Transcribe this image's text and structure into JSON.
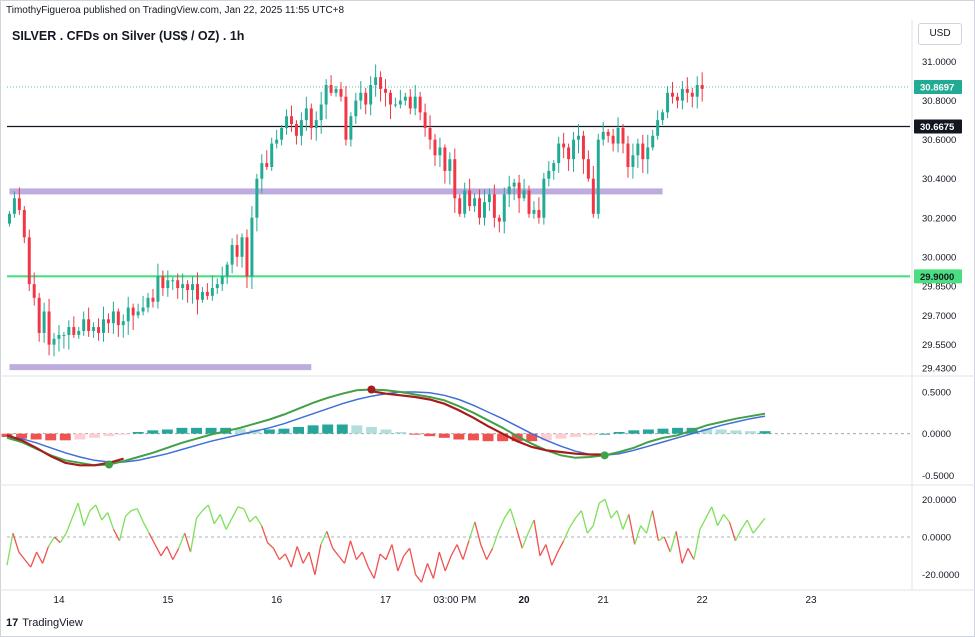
{
  "header": {
    "publish_line": "TimothyFigueroa published on TradingView.com, Jan 22, 2025 11:55 UTC+8",
    "symbol_line": "SILVER . CFDs on Silver (US$ / OZ) . 1h",
    "currency_button": "USD"
  },
  "footer": {
    "logo_glyph": "17",
    "brand": "TradingView"
  },
  "colors": {
    "up": "#22ab94",
    "down": "#f23645",
    "purple_zone": "#b39ddb",
    "green_line": "#4ade80",
    "black_line": "#131722",
    "macd_fast": "#43a047",
    "macd_slow": "#3f6fd8",
    "macd_dark": "#a51c1c",
    "hist_up_strong": "#26a69a",
    "hist_up_weak": "#b2dfdb",
    "hist_down_strong": "#ef5350",
    "hist_down_weak": "#ffcdd2",
    "osc_up": "#7ee05a",
    "osc_down": "#ef5350"
  },
  "chart_data": [
    {
      "type": "candlestick",
      "title": "SILVER . CFDs on Silver (US$ / OZ) . 1h",
      "price_axis_ticks": [
        "31.0000",
        "30.8000",
        "30.6000",
        "30.4000",
        "30.2000",
        "30.0000",
        "29.8500",
        "29.7000",
        "29.5500",
        "29.4300"
      ],
      "price_axis_values": [
        31.0,
        30.8,
        30.6,
        30.4,
        30.2,
        30.0,
        29.85,
        29.7,
        29.55,
        29.43
      ],
      "ylim": [
        29.41,
        31.09
      ],
      "x_ticks": [
        {
          "label": "14",
          "index": 10
        },
        {
          "label": "15",
          "index": 32
        },
        {
          "label": "16",
          "index": 54
        },
        {
          "label": "17",
          "index": 76
        },
        {
          "label": "03:00 PM",
          "index": 90
        },
        {
          "label": "20",
          "index": 104
        },
        {
          "label": "21",
          "index": 120
        },
        {
          "label": "22",
          "index": 140
        },
        {
          "label": "23",
          "index": 162
        }
      ],
      "x_range": [
        -0.5,
        182
      ],
      "last_price_label": "30.8697",
      "last_price": 30.8697,
      "horizontal_lines": [
        {
          "name": "resistance-line",
          "value": 30.6675,
          "label": "30.6675",
          "color": "#131722"
        },
        {
          "name": "support-line",
          "value": 29.9,
          "label": "29.9000",
          "color": "#4ade80"
        }
      ],
      "zones": [
        {
          "name": "upper-zone",
          "value": 30.335,
          "from_index": 0,
          "to_index": 132,
          "color": "#b39ddb"
        },
        {
          "name": "lower-zone",
          "value": 29.435,
          "from_index": 0,
          "to_index": 61,
          "color": "#b39ddb"
        }
      ],
      "closes": [
        30.22,
        30.3,
        30.24,
        30.1,
        29.86,
        29.79,
        29.61,
        29.72,
        29.55,
        29.58,
        29.6,
        29.6,
        29.64,
        29.6,
        29.62,
        29.68,
        29.62,
        29.64,
        29.61,
        29.68,
        29.66,
        29.72,
        29.65,
        29.67,
        29.74,
        29.7,
        29.72,
        29.74,
        29.79,
        29.77,
        29.9,
        29.84,
        29.88,
        29.88,
        29.84,
        29.86,
        29.83,
        29.86,
        29.78,
        29.82,
        29.8,
        29.84,
        29.86,
        29.9,
        29.96,
        30.06,
        30.0,
        30.1,
        29.9,
        30.2,
        30.4,
        30.48,
        30.46,
        30.58,
        30.6,
        30.66,
        30.72,
        30.68,
        30.62,
        30.7,
        30.76,
        30.66,
        30.7,
        30.78,
        30.88,
        30.84,
        30.86,
        30.82,
        30.6,
        30.72,
        30.8,
        30.84,
        30.78,
        30.88,
        30.92,
        30.86,
        30.84,
        30.78,
        30.78,
        30.8,
        30.82,
        30.76,
        30.82,
        30.74,
        30.66,
        30.6,
        30.52,
        30.56,
        30.44,
        30.5,
        30.3,
        30.22,
        30.34,
        30.26,
        30.3,
        30.2,
        30.28,
        30.32,
        30.2,
        30.18,
        30.32,
        30.36,
        30.38,
        30.3,
        30.34,
        30.22,
        30.24,
        30.2,
        30.4,
        30.44,
        30.48,
        30.58,
        30.56,
        30.5,
        30.6,
        30.62,
        30.5,
        30.4,
        30.22,
        30.6,
        30.64,
        30.62,
        30.58,
        30.66,
        30.58,
        30.46,
        30.52,
        30.58,
        30.5,
        30.56,
        30.62,
        30.7,
        30.74,
        30.84,
        30.82,
        30.8,
        30.86,
        30.84,
        30.82,
        30.88,
        30.86
      ]
    },
    {
      "type": "line",
      "name": "macd-panel",
      "axis_ticks": [
        "0.5000",
        "0.0000",
        "-0.5000"
      ],
      "axis_values": [
        0.5,
        0.0,
        -0.5
      ],
      "ylim": [
        -0.58,
        0.62
      ],
      "series": [
        {
          "key": "fast",
          "values": [
            -0.05,
            -0.1,
            -0.18,
            -0.26,
            -0.32,
            -0.35,
            -0.38,
            -0.37,
            -0.33,
            -0.28,
            -0.23,
            -0.17,
            -0.11,
            -0.06,
            -0.01,
            0.03,
            0.07,
            0.12,
            0.17,
            0.23,
            0.3,
            0.37,
            0.43,
            0.48,
            0.52,
            0.53,
            0.52,
            0.5,
            0.47,
            0.44,
            0.4,
            0.33,
            0.25,
            0.16,
            0.07,
            -0.03,
            -0.12,
            -0.2,
            -0.26,
            -0.29,
            -0.28,
            -0.26,
            -0.22,
            -0.17,
            -0.1,
            -0.05,
            -0.02,
            0.04,
            0.1,
            0.14,
            0.18,
            0.21,
            0.24
          ]
        },
        {
          "key": "slow",
          "values": [
            -0.03,
            -0.06,
            -0.11,
            -0.17,
            -0.23,
            -0.28,
            -0.32,
            -0.34,
            -0.34,
            -0.32,
            -0.28,
            -0.24,
            -0.19,
            -0.14,
            -0.09,
            -0.05,
            -0.01,
            0.03,
            0.07,
            0.12,
            0.18,
            0.24,
            0.3,
            0.36,
            0.41,
            0.45,
            0.48,
            0.5,
            0.5,
            0.49,
            0.46,
            0.41,
            0.34,
            0.26,
            0.18,
            0.09,
            0.0,
            -0.08,
            -0.15,
            -0.21,
            -0.25,
            -0.26,
            -0.24,
            -0.2,
            -0.15,
            -0.1,
            -0.05,
            0.0,
            0.05,
            0.1,
            0.14,
            0.18,
            0.21
          ]
        },
        {
          "key": "dark",
          "values": [
            -0.02,
            -0.08,
            -0.17,
            -0.27,
            -0.35,
            -0.38,
            -0.38,
            -0.35,
            -0.3,
            null,
            null,
            null,
            null,
            null,
            null,
            null,
            null,
            null,
            null,
            null,
            null,
            null,
            null,
            null,
            null,
            0.51,
            0.48,
            0.46,
            0.44,
            0.41,
            0.36,
            0.28,
            0.19,
            0.09,
            0.0,
            -0.09,
            -0.16,
            -0.2,
            -0.22,
            -0.24,
            -0.25,
            -0.25,
            null,
            null,
            null,
            null,
            null,
            null,
            null,
            null,
            null,
            null,
            null
          ]
        },
        {
          "key": "histogram",
          "values": [
            -0.04,
            -0.06,
            -0.07,
            -0.08,
            -0.08,
            -0.07,
            -0.05,
            -0.03,
            -0.01,
            0.02,
            0.04,
            0.05,
            0.07,
            0.07,
            0.07,
            0.07,
            0.06,
            0.05,
            0.05,
            0.06,
            0.08,
            0.1,
            0.11,
            0.11,
            0.1,
            0.08,
            0.05,
            0.02,
            -0.01,
            -0.03,
            -0.05,
            -0.07,
            -0.08,
            -0.09,
            -0.09,
            -0.09,
            -0.09,
            -0.08,
            -0.06,
            -0.04,
            -0.02,
            0.0,
            0.02,
            0.04,
            0.05,
            0.06,
            0.07,
            0.07,
            0.06,
            0.05,
            0.04,
            0.03,
            0.03
          ]
        }
      ],
      "markers": [
        {
          "name": "bullish-cross-marker",
          "index": 7,
          "value": -0.37,
          "color": "#43a047"
        },
        {
          "name": "bearish-cross-marker",
          "index": 25,
          "value": 0.53,
          "color": "#a51c1c"
        },
        {
          "name": "bullish-cross-marker-2",
          "index": 41,
          "value": -0.26,
          "color": "#43a047"
        }
      ]
    },
    {
      "type": "line",
      "name": "oscillator-panel",
      "axis_ticks": [
        "20.0000",
        "0.0000",
        "-20.0000"
      ],
      "axis_values": [
        20,
        0,
        -20
      ],
      "ylim": [
        -26,
        26
      ],
      "values": [
        -15,
        2,
        -8,
        -12,
        -16,
        -8,
        -14,
        -5,
        0,
        -3,
        2,
        10,
        18,
        6,
        14,
        17,
        9,
        13,
        4,
        -2,
        11,
        14,
        15,
        8,
        2,
        -4,
        -10,
        -5,
        -12,
        -6,
        2,
        -8,
        10,
        14,
        17,
        7,
        12,
        4,
        10,
        16,
        15,
        8,
        11,
        6,
        -3,
        -6,
        -12,
        -9,
        -16,
        -5,
        -14,
        -8,
        -20,
        -4,
        3,
        -6,
        -10,
        -14,
        -2,
        -12,
        -8,
        -16,
        -22,
        -9,
        -12,
        -4,
        -18,
        -10,
        -6,
        -20,
        -24,
        -14,
        -22,
        -8,
        -18,
        -10,
        -4,
        -12,
        -2,
        8,
        -4,
        -12,
        -6,
        3,
        10,
        15,
        5,
        -6,
        2,
        9,
        -10,
        -4,
        -15,
        -8,
        -2,
        5,
        10,
        14,
        2,
        6,
        18,
        20,
        10,
        14,
        4,
        12,
        -4,
        6,
        2,
        14,
        -2,
        0,
        -8,
        3,
        -14,
        -6,
        -12,
        4,
        10,
        16,
        6,
        12,
        8,
        -2,
        4,
        9,
        2,
        6,
        10
      ]
    }
  ]
}
